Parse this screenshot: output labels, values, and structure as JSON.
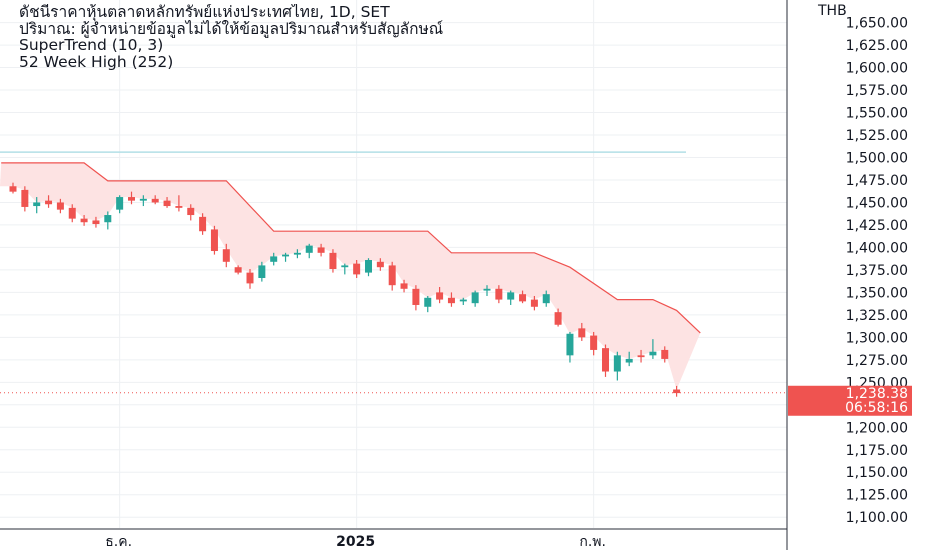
{
  "legend": {
    "line1": "ดัชนีราคาหุ้นตลาดหลักทรัพย์แห่งประเทศไทย, 1D, SET",
    "line2": "ปริมาณ: ผู้จำหน่ายข้อมูลไม่ได้ให้ข้อมูลปริมาณสำหรับสัญลักษณ์",
    "line3": "SuperTrend (10, 3)",
    "line4": "52 Week High (252)"
  },
  "price_axis": {
    "currency": "THB",
    "ticks": [
      "1,650.00",
      "1,625.00",
      "1,600.00",
      "1,575.00",
      "1,550.00",
      "1,525.00",
      "1,500.00",
      "1,475.00",
      "1,450.00",
      "1,425.00",
      "1,400.00",
      "1,375.00",
      "1,350.00",
      "1,325.00",
      "1,300.00",
      "1,275.00",
      "1,250.00",
      "1,225.00",
      "1,200.00",
      "1,175.00",
      "1,150.00",
      "1,125.00",
      "1,100.00"
    ]
  },
  "last_price": {
    "label": "1,238.38",
    "countdown": "06:58:16"
  },
  "time_axis": {
    "labels": [
      {
        "text": "ธ.ค.",
        "bold": false
      },
      {
        "text": "2025",
        "bold": true
      },
      {
        "text": "ก.พ.",
        "bold": false
      }
    ]
  },
  "colors": {
    "up": "#26a69a",
    "down": "#ef5350",
    "supertrend": "#ef5350",
    "supertrend_fill": "#fde3e3",
    "week52": "#b2dfe6",
    "grid": "#eef0f3",
    "axis_line": "#2a2e39"
  },
  "chart_data": {
    "type": "candlestick",
    "symbol": "SET",
    "interval": "1D",
    "ylim": [
      1088,
      1664
    ],
    "week52_high": 1506,
    "last_price": 1238.38,
    "candles": [
      {
        "o": 1468,
        "h": 1472,
        "l": 1460,
        "c": 1462
      },
      {
        "o": 1464,
        "h": 1468,
        "l": 1440,
        "c": 1445
      },
      {
        "o": 1446,
        "h": 1456,
        "l": 1438,
        "c": 1450
      },
      {
        "o": 1452,
        "h": 1458,
        "l": 1444,
        "c": 1448
      },
      {
        "o": 1450,
        "h": 1454,
        "l": 1438,
        "c": 1442
      },
      {
        "o": 1444,
        "h": 1448,
        "l": 1428,
        "c": 1432
      },
      {
        "o": 1432,
        "h": 1436,
        "l": 1424,
        "c": 1428
      },
      {
        "o": 1430,
        "h": 1434,
        "l": 1422,
        "c": 1426
      },
      {
        "o": 1428,
        "h": 1440,
        "l": 1420,
        "c": 1436
      },
      {
        "o": 1442,
        "h": 1458,
        "l": 1438,
        "c": 1456
      },
      {
        "o": 1456,
        "h": 1462,
        "l": 1448,
        "c": 1452
      },
      {
        "o": 1452,
        "h": 1458,
        "l": 1446,
        "c": 1454
      },
      {
        "o": 1454,
        "h": 1458,
        "l": 1448,
        "c": 1450
      },
      {
        "o": 1452,
        "h": 1456,
        "l": 1444,
        "c": 1446
      },
      {
        "o": 1446,
        "h": 1458,
        "l": 1440,
        "c": 1444
      },
      {
        "o": 1444,
        "h": 1448,
        "l": 1430,
        "c": 1436
      },
      {
        "o": 1434,
        "h": 1438,
        "l": 1414,
        "c": 1418
      },
      {
        "o": 1420,
        "h": 1424,
        "l": 1392,
        "c": 1396
      },
      {
        "o": 1398,
        "h": 1404,
        "l": 1378,
        "c": 1384
      },
      {
        "o": 1378,
        "h": 1380,
        "l": 1370,
        "c": 1372
      },
      {
        "o": 1372,
        "h": 1376,
        "l": 1354,
        "c": 1360
      },
      {
        "o": 1366,
        "h": 1384,
        "l": 1362,
        "c": 1380
      },
      {
        "o": 1384,
        "h": 1394,
        "l": 1380,
        "c": 1390
      },
      {
        "o": 1390,
        "h": 1394,
        "l": 1384,
        "c": 1392
      },
      {
        "o": 1392,
        "h": 1398,
        "l": 1388,
        "c": 1394
      },
      {
        "o": 1394,
        "h": 1404,
        "l": 1388,
        "c": 1402
      },
      {
        "o": 1400,
        "h": 1404,
        "l": 1390,
        "c": 1394
      },
      {
        "o": 1394,
        "h": 1398,
        "l": 1372,
        "c": 1376
      },
      {
        "o": 1378,
        "h": 1382,
        "l": 1370,
        "c": 1380
      },
      {
        "o": 1382,
        "h": 1386,
        "l": 1366,
        "c": 1370
      },
      {
        "o": 1372,
        "h": 1388,
        "l": 1368,
        "c": 1386
      },
      {
        "o": 1384,
        "h": 1388,
        "l": 1374,
        "c": 1378
      },
      {
        "o": 1380,
        "h": 1384,
        "l": 1352,
        "c": 1358
      },
      {
        "o": 1360,
        "h": 1364,
        "l": 1350,
        "c": 1354
      },
      {
        "o": 1354,
        "h": 1358,
        "l": 1330,
        "c": 1336
      },
      {
        "o": 1334,
        "h": 1346,
        "l": 1328,
        "c": 1344
      },
      {
        "o": 1350,
        "h": 1356,
        "l": 1338,
        "c": 1342
      },
      {
        "o": 1344,
        "h": 1350,
        "l": 1334,
        "c": 1338
      },
      {
        "o": 1340,
        "h": 1344,
        "l": 1336,
        "c": 1342
      },
      {
        "o": 1338,
        "h": 1352,
        "l": 1334,
        "c": 1350
      },
      {
        "o": 1352,
        "h": 1358,
        "l": 1346,
        "c": 1354
      },
      {
        "o": 1354,
        "h": 1358,
        "l": 1338,
        "c": 1342
      },
      {
        "o": 1342,
        "h": 1352,
        "l": 1336,
        "c": 1350
      },
      {
        "o": 1348,
        "h": 1352,
        "l": 1338,
        "c": 1340
      },
      {
        "o": 1342,
        "h": 1346,
        "l": 1330,
        "c": 1334
      },
      {
        "o": 1338,
        "h": 1352,
        "l": 1334,
        "c": 1348
      },
      {
        "o": 1328,
        "h": 1332,
        "l": 1312,
        "c": 1314
      },
      {
        "o": 1280,
        "h": 1306,
        "l": 1272,
        "c": 1304
      },
      {
        "o": 1310,
        "h": 1316,
        "l": 1296,
        "c": 1300
      },
      {
        "o": 1302,
        "h": 1306,
        "l": 1280,
        "c": 1286
      },
      {
        "o": 1288,
        "h": 1292,
        "l": 1256,
        "c": 1262
      },
      {
        "o": 1262,
        "h": 1284,
        "l": 1252,
        "c": 1280
      },
      {
        "o": 1272,
        "h": 1284,
        "l": 1268,
        "c": 1276
      },
      {
        "o": 1280,
        "h": 1286,
        "l": 1272,
        "c": 1278
      },
      {
        "o": 1280,
        "h": 1298,
        "l": 1276,
        "c": 1284
      },
      {
        "o": 1286,
        "h": 1290,
        "l": 1272,
        "c": 1276
      },
      {
        "o": 1242,
        "h": 1246,
        "l": 1234,
        "c": 1238
      }
    ],
    "supertrend": [
      {
        "i": -1,
        "v": 1494
      },
      {
        "i": 6,
        "v": 1494
      },
      {
        "i": 8,
        "v": 1474
      },
      {
        "i": 18,
        "v": 1474
      },
      {
        "i": 22,
        "v": 1418
      },
      {
        "i": 35,
        "v": 1418
      },
      {
        "i": 37,
        "v": 1394
      },
      {
        "i": 44,
        "v": 1394
      },
      {
        "i": 47,
        "v": 1378
      },
      {
        "i": 51,
        "v": 1342
      },
      {
        "i": 54,
        "v": 1342
      },
      {
        "i": 56,
        "v": 1330
      },
      {
        "i": 58,
        "v": 1305
      }
    ],
    "time_labels": [
      {
        "i": 9,
        "label": "ธ.ค."
      },
      {
        "i": 29,
        "label": "2025"
      },
      {
        "i": 49,
        "label": "ก.พ."
      }
    ]
  }
}
